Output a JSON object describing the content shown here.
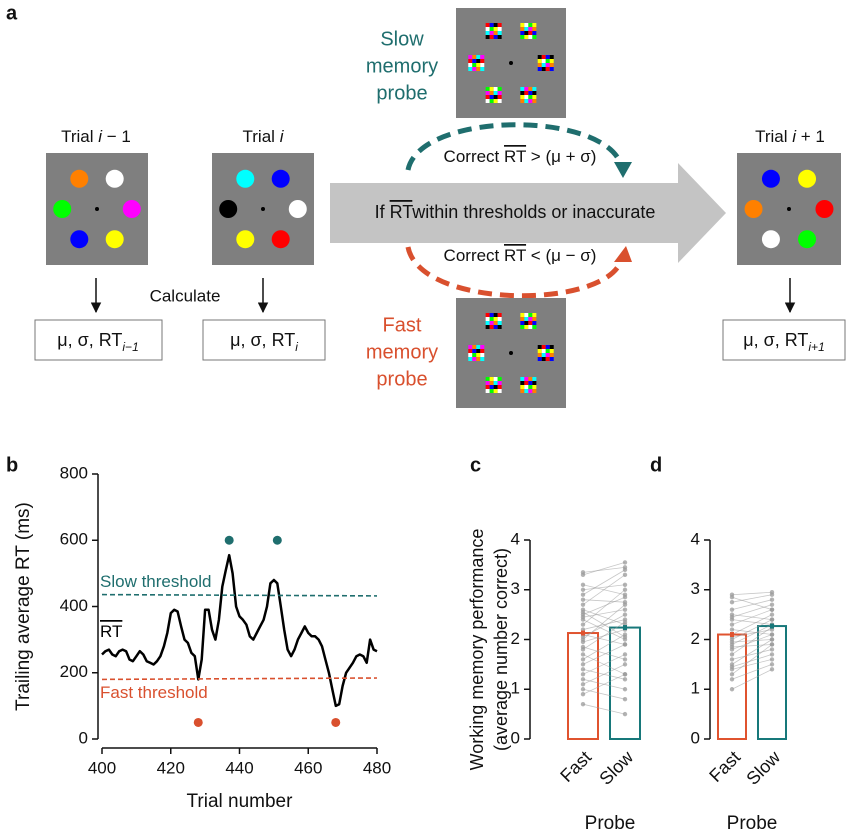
{
  "panel_labels": [
    "a",
    "b",
    "c",
    "d"
  ],
  "diagram": {
    "trials": [
      {
        "prefix": "Trial",
        "var": "i",
        "suffix": "− 1",
        "stats": {
          "main": "μ, σ, RT",
          "sub": "i−1"
        }
      },
      {
        "prefix": "Trial",
        "var": "i",
        "suffix": "",
        "stats": {
          "main": "μ, σ, RT",
          "sub": "i"
        }
      },
      {
        "prefix": "Trial",
        "var": "i",
        "suffix": "+ 1",
        "stats": {
          "main": "μ, σ, RT",
          "sub": "i+1"
        }
      }
    ],
    "calculate": "Calculate",
    "slow_probe": [
      "Slow",
      "memory",
      "probe"
    ],
    "fast_probe": [
      "Fast",
      "memory",
      "probe"
    ],
    "slow_condition": {
      "prefix": "Correct",
      "bar": "RT",
      "suffix": "> (μ + σ)"
    },
    "fast_condition": {
      "prefix": "Correct",
      "bar": "RT",
      "suffix": "< (μ − σ)"
    },
    "default_condition": {
      "prefix": "If",
      "bar": "RT",
      "suffix": "within thresholds or inaccurate"
    }
  },
  "chart_data": [
    {
      "type": "line",
      "xlabel": "Trial number",
      "ylabel": "Trailing average RT (ms)",
      "xlim": [
        400,
        480
      ],
      "xticks": [
        400,
        420,
        440,
        460,
        480
      ],
      "ylim": [
        0,
        800
      ],
      "yticks": [
        0,
        200,
        400,
        600,
        800
      ],
      "series": [
        {
          "name": "RT",
          "color": "#000000",
          "style": "solid",
          "x": [
            400,
            401,
            402,
            403,
            404,
            405,
            406,
            407,
            408,
            409,
            410,
            411,
            412,
            413,
            414,
            415,
            416,
            417,
            418,
            419,
            420,
            421,
            422,
            423,
            424,
            425,
            426,
            427,
            428,
            429,
            430,
            431,
            432,
            433,
            434,
            435,
            436,
            437,
            438,
            439,
            440,
            441,
            442,
            443,
            444,
            445,
            446,
            447,
            448,
            449,
            450,
            451,
            452,
            453,
            454,
            455,
            456,
            457,
            458,
            459,
            460,
            461,
            462,
            463,
            464,
            465,
            466,
            467,
            468,
            469,
            470,
            471,
            472,
            473,
            474,
            475,
            476,
            477,
            478,
            479,
            480
          ],
          "values": [
            255,
            265,
            270,
            255,
            250,
            265,
            270,
            265,
            240,
            235,
            250,
            265,
            255,
            235,
            230,
            225,
            235,
            250,
            280,
            320,
            380,
            390,
            385,
            340,
            300,
            290,
            260,
            250,
            180,
            240,
            390,
            390,
            330,
            300,
            360,
            460,
            510,
            555,
            500,
            400,
            370,
            360,
            345,
            310,
            300,
            320,
            340,
            360,
            400,
            470,
            480,
            470,
            400,
            330,
            270,
            250,
            270,
            300,
            320,
            340,
            320,
            310,
            310,
            300,
            280,
            240,
            200,
            150,
            100,
            105,
            160,
            200,
            215,
            230,
            250,
            255,
            250,
            230,
            300,
            270,
            265
          ]
        },
        {
          "name": "Slow threshold",
          "color": "#1f6e6e",
          "style": "dashed",
          "x": [
            400,
            480
          ],
          "values": [
            436,
            432
          ]
        },
        {
          "name": "Fast threshold",
          "color": "#d9502e",
          "style": "dashed",
          "x": [
            400,
            480
          ],
          "values": [
            180,
            184
          ]
        }
      ],
      "probes": [
        {
          "color": "#1f6e6e",
          "x": [
            437,
            451
          ],
          "values": [
            600,
            600
          ]
        },
        {
          "color": "#d9502e",
          "x": [
            428,
            468
          ],
          "values": [
            50,
            50
          ]
        }
      ]
    },
    {
      "type": "bar",
      "ylabel": [
        "Working memory performance",
        "(average number correct)"
      ],
      "xlabel": "Probe",
      "categories": [
        "Fast",
        "Slow"
      ],
      "values": [
        2.13,
        2.24
      ],
      "errors": [
        0.05,
        0.05
      ],
      "colors": [
        "#e0532f",
        "#17787a"
      ],
      "point_color": "#9a9a9a",
      "ylim": [
        0,
        4
      ],
      "yticks": [
        0,
        1,
        2,
        3,
        4
      ],
      "points": [
        [
          3.35,
          3.45
        ],
        [
          3.3,
          3.55
        ],
        [
          3.1,
          2.9
        ],
        [
          3.0,
          3.1
        ],
        [
          2.9,
          3.4
        ],
        [
          2.8,
          2.75
        ],
        [
          2.7,
          3.3
        ],
        [
          2.6,
          2.3
        ],
        [
          2.5,
          2.85
        ],
        [
          2.45,
          2.6
        ],
        [
          2.4,
          2.0
        ],
        [
          2.3,
          3.0
        ],
        [
          2.2,
          2.4
        ],
        [
          2.1,
          1.9
        ],
        [
          2.05,
          2.5
        ],
        [
          2.0,
          2.7
        ],
        [
          1.95,
          2.2
        ],
        [
          1.85,
          1.6
        ],
        [
          1.8,
          2.35
        ],
        [
          1.7,
          1.3
        ],
        [
          1.6,
          2.1
        ],
        [
          1.5,
          1.9
        ],
        [
          1.4,
          1.2
        ],
        [
          1.3,
          1.7
        ],
        [
          1.2,
          1.0
        ],
        [
          1.1,
          1.5
        ],
        [
          1.0,
          0.8
        ],
        [
          0.9,
          1.3
        ],
        [
          0.7,
          0.5
        ],
        [
          2.55,
          2.05
        ]
      ]
    },
    {
      "type": "bar",
      "xlabel": "Probe",
      "categories": [
        "Fast",
        "Slow"
      ],
      "values": [
        2.1,
        2.27
      ],
      "errors": [
        0.05,
        0.05
      ],
      "colors": [
        "#e0532f",
        "#17787a"
      ],
      "point_color": "#9a9a9a",
      "ylim": [
        0,
        4
      ],
      "yticks": [
        0,
        1,
        2,
        3,
        4
      ],
      "points": [
        [
          2.9,
          2.95
        ],
        [
          2.85,
          2.6
        ],
        [
          2.75,
          2.9
        ],
        [
          2.6,
          2.8
        ],
        [
          2.5,
          2.4
        ],
        [
          2.45,
          2.7
        ],
        [
          2.4,
          2.3
        ],
        [
          2.3,
          2.6
        ],
        [
          2.2,
          2.1
        ],
        [
          2.1,
          2.5
        ],
        [
          2.05,
          2.2
        ],
        [
          2.0,
          2.4
        ],
        [
          1.95,
          2.0
        ],
        [
          1.9,
          2.3
        ],
        [
          1.85,
          1.9
        ],
        [
          1.8,
          2.1
        ],
        [
          1.7,
          2.25
        ],
        [
          1.6,
          1.8
        ],
        [
          1.5,
          2.0
        ],
        [
          1.45,
          1.7
        ],
        [
          1.4,
          1.6
        ],
        [
          1.3,
          1.9
        ],
        [
          1.2,
          1.5
        ],
        [
          1.0,
          1.4
        ]
      ]
    }
  ]
}
